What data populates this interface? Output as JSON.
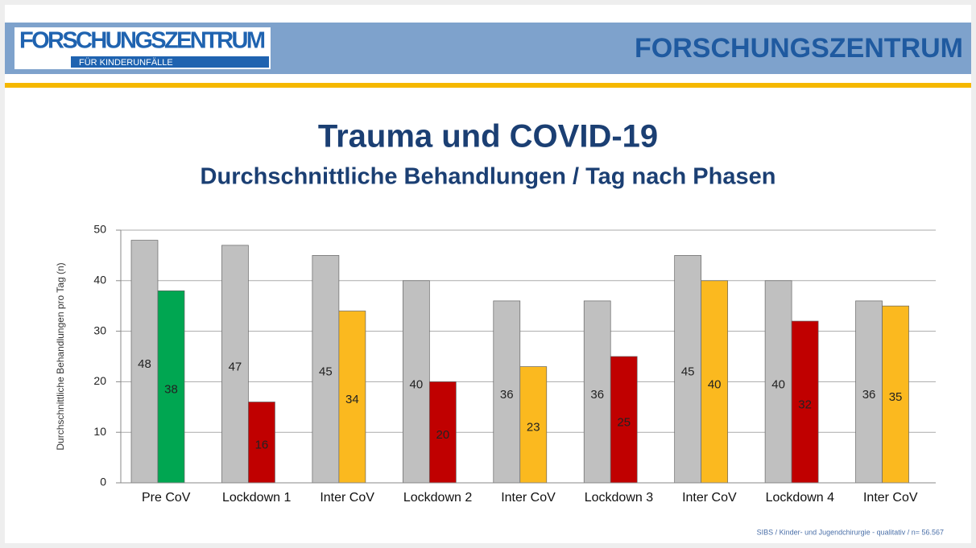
{
  "header": {
    "logo_title": "FORSCHUNGSZENTRUM",
    "logo_subtitle": "FÜR KINDERUNFÄLLE",
    "title": "FORSCHUNGSZENTRUM"
  },
  "chart_data": {
    "type": "bar",
    "title": "Trauma und COVID-19",
    "subtitle": "Durchschnittliche Behandlungen / Tag nach Phasen",
    "y_label": "Durchschnittliche  Behandlungen pro Tag (n)",
    "categories": [
      "Pre CoV",
      "Lockdown 1",
      "Inter CoV",
      "Lockdown 2",
      "Inter CoV",
      "Lockdown 3",
      "Inter CoV",
      "Lockdown 4",
      "Inter CoV"
    ],
    "series": [
      {
        "color": "#c0c0c0",
        "values": [
          48,
          47,
          45,
          40,
          36,
          36,
          45,
          40,
          36
        ]
      },
      {
        "colors": [
          "#00a651",
          "#c00000",
          "#fbb91f",
          "#c00000",
          "#fbb91f",
          "#c00000",
          "#fbb91f",
          "#c00000",
          "#fbb91f"
        ],
        "values": [
          38,
          16,
          34,
          20,
          23,
          25,
          40,
          32,
          35
        ]
      }
    ],
    "ylim": [
      0,
      50
    ],
    "yticks": [
      0,
      10,
      20,
      30,
      40,
      50
    ],
    "grid": true,
    "source": "SIBS / Kinder- und Jugendchirurgie - qualitativ / n= 56.567"
  }
}
